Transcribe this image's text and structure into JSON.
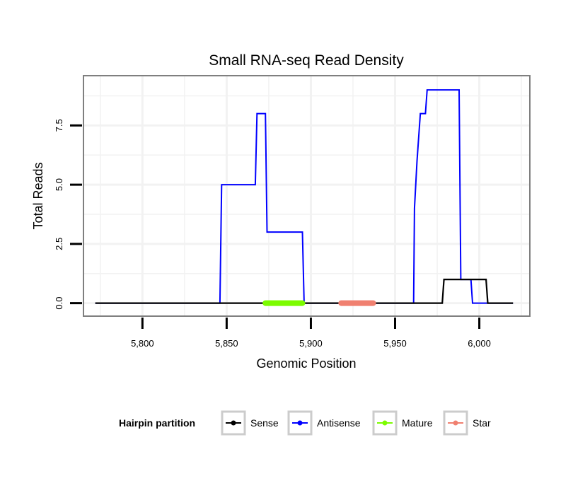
{
  "chart_data": {
    "type": "line",
    "title": "Small RNA-seq Read Density",
    "xlabel": "Genomic Position",
    "ylabel": "Total Reads",
    "xlim": [
      5765,
      6030
    ],
    "ylim": [
      -0.55,
      9.6
    ],
    "x_ticks": [
      5800,
      5850,
      5900,
      5950,
      6000
    ],
    "x_tick_labels": [
      "5,800",
      "5,850",
      "5,900",
      "5,950",
      "6,000"
    ],
    "y_ticks": [
      0,
      2.5,
      5,
      7.5
    ],
    "y_tick_labels": [
      "0.0",
      "2.5",
      "5.0",
      "7.5"
    ],
    "grid": true,
    "legend": {
      "title": "Hairpin partition",
      "position": "bottom",
      "entries": [
        {
          "label": "Sense",
          "color": "#000000"
        },
        {
          "label": "Antisense",
          "color": "#0000ff"
        },
        {
          "label": "Mature",
          "color": "#7cfc00"
        },
        {
          "label": "Star",
          "color": "#f08070"
        }
      ]
    },
    "series": [
      {
        "name": "Antisense",
        "color": "#0000ff",
        "x": [
          5772,
          5846,
          5847,
          5867,
          5868,
          5873,
          5874,
          5895,
          5896,
          5961,
          5961.5,
          5963,
          5965,
          5968,
          5969,
          5988,
          5989,
          5995,
          5996,
          6020
        ],
        "y": [
          0,
          0,
          5,
          5,
          8,
          8,
          3,
          3,
          0,
          0,
          4,
          6,
          8,
          8,
          9,
          9,
          1,
          1,
          0,
          0
        ]
      },
      {
        "name": "Sense",
        "color": "#000000",
        "x": [
          5772,
          5978,
          5979,
          6004,
          6005,
          6020
        ],
        "y": [
          0,
          0,
          1,
          1,
          0,
          0
        ]
      },
      {
        "name": "Mature",
        "color": "#7cfc00",
        "x": [
          5873,
          5895
        ],
        "y": [
          0,
          0
        ]
      },
      {
        "name": "Star",
        "color": "#f08070",
        "x": [
          5918,
          5937
        ],
        "y": [
          0,
          0
        ]
      }
    ]
  }
}
